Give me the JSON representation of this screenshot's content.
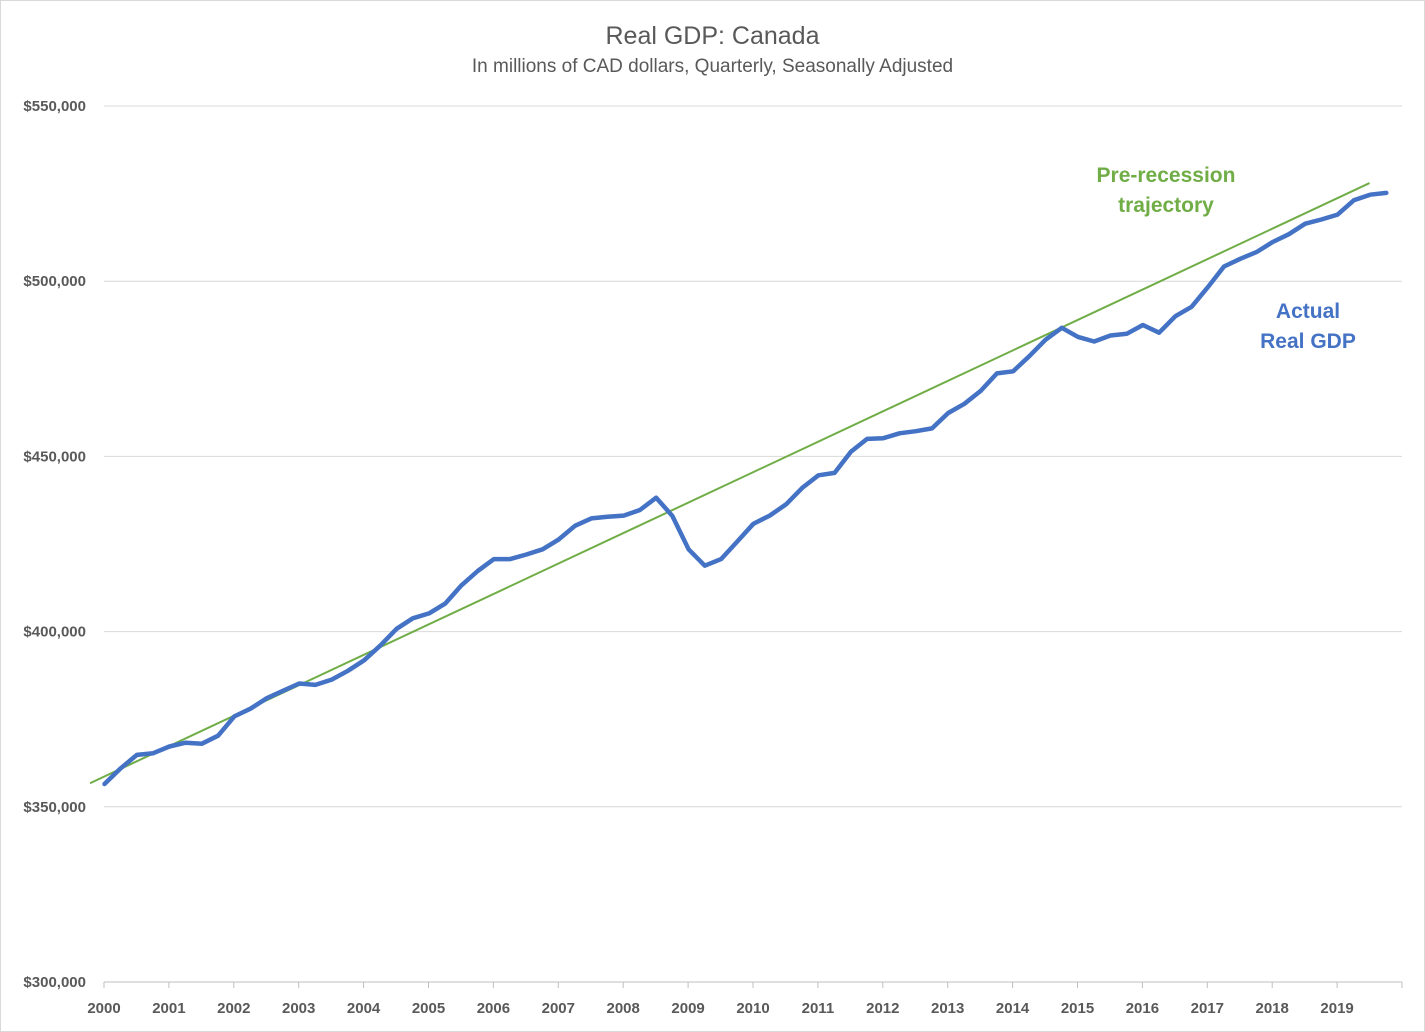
{
  "chart_data": {
    "type": "line",
    "title": "Real GDP: Canada",
    "subtitle": "In millions of CAD dollars, Quarterly, Seasonally Adjusted",
    "xlabel": "",
    "ylabel": "",
    "ylim": [
      300000,
      550000
    ],
    "y_ticks": [
      "$300,000",
      "$350,000",
      "$400,000",
      "$450,000",
      "$500,000",
      "$550,000"
    ],
    "x_ticks": [
      "2000",
      "2001",
      "2002",
      "2003",
      "2004",
      "2005",
      "2006",
      "2007",
      "2008",
      "2009",
      "2010",
      "2011",
      "2012",
      "2013",
      "2014",
      "2015",
      "2016",
      "2017",
      "2018",
      "2019"
    ],
    "grid": "horizontal",
    "annotations": [
      {
        "lines": [
          "Pre-recession",
          "trajectory"
        ],
        "color": "#70ad47"
      },
      {
        "lines": [
          "Actual",
          "Real GDP"
        ],
        "color": "#4472c4"
      }
    ],
    "series": [
      {
        "color": "#4472c4",
        "x_start": "2000-Q1",
        "frequency": "quarterly",
        "values": [
          356500,
          361000,
          364800,
          365300,
          367200,
          368300,
          368000,
          370300,
          375800,
          378000,
          381000,
          383100,
          385200,
          384800,
          386300,
          388800,
          391800,
          396000,
          400800,
          403800,
          405200,
          408000,
          413200,
          417300,
          420700,
          420700,
          422000,
          423500,
          426300,
          430200,
          432300,
          432800,
          433100,
          434700,
          438200,
          433000,
          423500,
          418800,
          420700,
          425700,
          430800,
          433100,
          436300,
          441000,
          444600,
          445300,
          451300,
          455000,
          455200,
          456600,
          457200,
          458000,
          462400,
          465000,
          468700,
          473700,
          474300,
          478600,
          483300,
          486700,
          484100,
          482800,
          484500,
          485000,
          487500,
          485300,
          490000,
          492700,
          498300,
          504200,
          506400,
          508300,
          511200,
          513400,
          516400,
          517600,
          519000,
          523100,
          524700,
          525200
        ]
      },
      {
        "color": "#70ad47",
        "x": [
          "2000-Q1",
          "2019-Q3"
        ],
        "values": [
          358600,
          528000
        ]
      }
    ]
  }
}
